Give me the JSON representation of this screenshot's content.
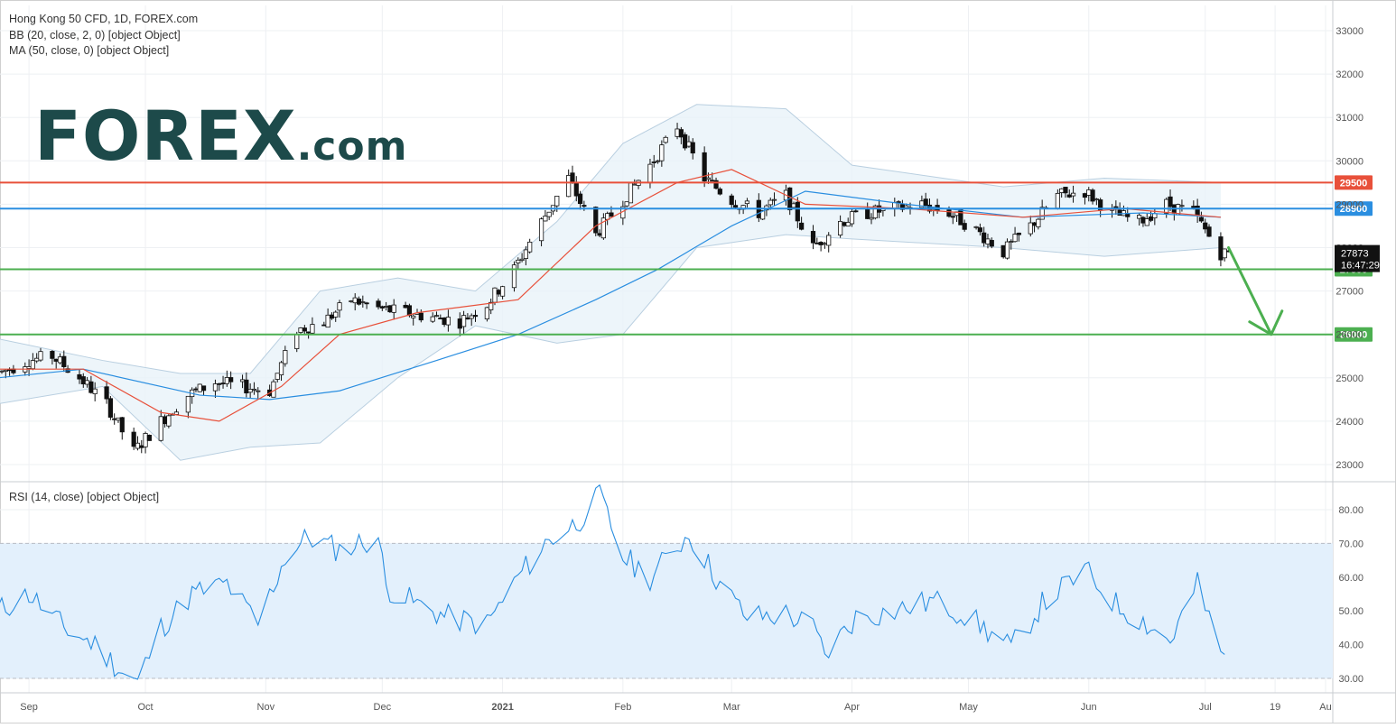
{
  "header": {
    "title": "Hong Kong 50 CFD, 1D, FOREX.com",
    "bb_label": "BB (20, close, 2, 0) [object Object]",
    "ma_label": "MA (50, close, 0) [object Object]",
    "rsi_label": "RSI (14, close) [object Object]"
  },
  "logo": {
    "main": "FOREX",
    "suffix": ".com"
  },
  "colors": {
    "resistance_red": "#e8503a",
    "level_blue": "#2a8ee0",
    "support_green": "#4caf50",
    "ma_blue": "#2a8ee0",
    "bb_mid_red": "#e8503a",
    "rsi_line": "#2a8ee0",
    "rsi_band": "#e3f0fc",
    "bb_fill": "#e9f2f9"
  },
  "price_tag": {
    "value": "27873",
    "countdown": "16:47:29"
  },
  "chart_data": [
    {
      "type": "candlestick",
      "title": "Hong Kong 50 CFD, 1D, FOREX.com",
      "ylim": [
        22700,
        33500
      ],
      "y_ticks": [
        23000,
        24000,
        25000,
        26000,
        27000,
        28000,
        29000,
        30000,
        31000,
        32000,
        33000
      ],
      "x_ticks": [
        "Sep",
        "Oct",
        "Nov",
        "Dec",
        "2021",
        "Feb",
        "Mar",
        "Apr",
        "May",
        "Jun",
        "Jul",
        "19",
        "Au"
      ],
      "x_tick_dates": [
        "2020-09-01",
        "2020-10-01",
        "2020-11-01",
        "2020-12-01",
        "2021-01-01",
        "2021-02-01",
        "2021-03-01",
        "2021-04-01",
        "2021-05-01",
        "2021-06-01",
        "2021-07-01",
        "2021-07-19",
        "2021-08-01"
      ],
      "horizontal_levels": [
        {
          "value": 29500,
          "label": "29500",
          "color": "#e8503a"
        },
        {
          "value": 28900,
          "label": "28900",
          "color": "#2a8ee0"
        },
        {
          "value": 27500,
          "label": "27500",
          "color": "#4caf50"
        },
        {
          "value": 26000,
          "label": "26000",
          "color": "#4caf50"
        }
      ],
      "series_close": [
        [
          "2020-08-24",
          25100
        ],
        [
          "2020-09-01",
          25400
        ],
        [
          "2020-09-07",
          25500
        ],
        [
          "2020-09-14",
          25000
        ],
        [
          "2020-09-21",
          24400
        ],
        [
          "2020-09-28",
          23300
        ],
        [
          "2020-10-05",
          24000
        ],
        [
          "2020-10-12",
          24600
        ],
        [
          "2020-10-19",
          24900
        ],
        [
          "2020-10-26",
          24800
        ],
        [
          "2020-11-02",
          24700
        ],
        [
          "2020-11-09",
          26100
        ],
        [
          "2020-11-16",
          26300
        ],
        [
          "2020-11-23",
          26800
        ],
        [
          "2020-11-30",
          26600
        ],
        [
          "2020-12-07",
          26500
        ],
        [
          "2020-12-14",
          26400
        ],
        [
          "2020-12-21",
          26300
        ],
        [
          "2020-12-28",
          26700
        ],
        [
          "2021-01-04",
          27500
        ],
        [
          "2021-01-11",
          28600
        ],
        [
          "2021-01-18",
          29600
        ],
        [
          "2021-01-25",
          28300
        ],
        [
          "2021-02-01",
          29100
        ],
        [
          "2021-02-08",
          29900
        ],
        [
          "2021-02-15",
          30800
        ],
        [
          "2021-02-22",
          29600
        ],
        [
          "2021-03-01",
          29100
        ],
        [
          "2021-03-08",
          28800
        ],
        [
          "2021-03-15",
          29200
        ],
        [
          "2021-03-22",
          28000
        ],
        [
          "2021-03-29",
          28600
        ],
        [
          "2021-04-05",
          28800
        ],
        [
          "2021-04-12",
          28900
        ],
        [
          "2021-04-19",
          29000
        ],
        [
          "2021-04-26",
          28800
        ],
        [
          "2021-05-03",
          28400
        ],
        [
          "2021-05-10",
          27900
        ],
        [
          "2021-05-17",
          28500
        ],
        [
          "2021-05-24",
          29200
        ],
        [
          "2021-05-31",
          29300
        ],
        [
          "2021-06-07",
          28800
        ],
        [
          "2021-06-14",
          28600
        ],
        [
          "2021-06-21",
          29000
        ],
        [
          "2021-06-28",
          28800
        ],
        [
          "2021-07-05",
          27873
        ]
      ],
      "ma50": [
        [
          "2020-08-24",
          25000
        ],
        [
          "2020-09-15",
          25200
        ],
        [
          "2020-10-15",
          24600
        ],
        [
          "2020-11-02",
          24500
        ],
        [
          "2020-11-20",
          24700
        ],
        [
          "2020-12-15",
          25400
        ],
        [
          "2021-01-05",
          26000
        ],
        [
          "2021-01-25",
          26800
        ],
        [
          "2021-02-10",
          27500
        ],
        [
          "2021-03-01",
          28500
        ],
        [
          "2021-03-20",
          29300
        ],
        [
          "2021-04-15",
          29000
        ],
        [
          "2021-05-15",
          28700
        ],
        [
          "2021-06-15",
          28800
        ],
        [
          "2021-07-05",
          28700
        ]
      ],
      "bb_basis": [
        [
          "2020-08-24",
          25200
        ],
        [
          "2020-09-15",
          25200
        ],
        [
          "2020-10-05",
          24200
        ],
        [
          "2020-10-20",
          24000
        ],
        [
          "2020-11-05",
          24800
        ],
        [
          "2020-11-20",
          26000
        ],
        [
          "2020-12-10",
          26500
        ],
        [
          "2021-01-05",
          26800
        ],
        [
          "2021-01-25",
          28500
        ],
        [
          "2021-02-15",
          29500
        ],
        [
          "2021-03-01",
          29800
        ],
        [
          "2021-03-20",
          29000
        ],
        [
          "2021-04-15",
          28900
        ],
        [
          "2021-05-15",
          28700
        ],
        [
          "2021-06-10",
          28900
        ],
        [
          "2021-07-05",
          28700
        ]
      ],
      "bb_upper": [
        [
          "2020-08-24",
          25900
        ],
        [
          "2020-09-20",
          25400
        ],
        [
          "2020-10-10",
          25100
        ],
        [
          "2020-10-28",
          25100
        ],
        [
          "2020-11-15",
          27000
        ],
        [
          "2020-12-05",
          27300
        ],
        [
          "2020-12-25",
          27000
        ],
        [
          "2021-01-15",
          28600
        ],
        [
          "2021-02-01",
          30400
        ],
        [
          "2021-02-20",
          31300
        ],
        [
          "2021-03-15",
          31200
        ],
        [
          "2021-04-01",
          29900
        ],
        [
          "2021-05-10",
          29400
        ],
        [
          "2021-06-05",
          29600
        ],
        [
          "2021-07-05",
          29500
        ]
      ],
      "bb_lower": [
        [
          "2020-08-24",
          24400
        ],
        [
          "2020-09-20",
          24800
        ],
        [
          "2020-10-10",
          23100
        ],
        [
          "2020-10-28",
          23400
        ],
        [
          "2020-11-15",
          23500
        ],
        [
          "2020-12-05",
          25000
        ],
        [
          "2020-12-25",
          26200
        ],
        [
          "2021-01-15",
          25800
        ],
        [
          "2021-02-01",
          26000
        ],
        [
          "2021-02-20",
          28000
        ],
        [
          "2021-03-15",
          28300
        ],
        [
          "2021-04-01",
          28200
        ],
        [
          "2021-05-10",
          28000
        ],
        [
          "2021-06-05",
          27800
        ],
        [
          "2021-07-05",
          28000
        ]
      ],
      "price_tag": {
        "value": 27873,
        "countdown": "16:47:29"
      },
      "annotation": {
        "type": "arrow",
        "direction": "down",
        "from": [
          "2021-07-07",
          28000
        ],
        "to": [
          "2021-07-18",
          26000
        ]
      }
    },
    {
      "type": "line",
      "title": "RSI (14, close) [object Object]",
      "ylim": [
        27,
        88
      ],
      "y_ticks": [
        30,
        40,
        50,
        60,
        70,
        80
      ],
      "band": [
        30,
        70
      ],
      "series": [
        {
          "name": "RSI",
          "values": [
            [
              "2020-08-24",
              50
            ],
            [
              "2020-09-01",
              55
            ],
            [
              "2020-09-10",
              45
            ],
            [
              "2020-09-18",
              40
            ],
            [
              "2020-09-25",
              32
            ],
            [
              "2020-09-29",
              29
            ],
            [
              "2020-10-05",
              45
            ],
            [
              "2020-10-13",
              55
            ],
            [
              "2020-10-22",
              58
            ],
            [
              "2020-10-30",
              46
            ],
            [
              "2020-11-06",
              66
            ],
            [
              "2020-11-12",
              72
            ],
            [
              "2020-11-20",
              68
            ],
            [
              "2020-11-30",
              72
            ],
            [
              "2020-12-02",
              57
            ],
            [
              "2020-12-10",
              52
            ],
            [
              "2020-12-18",
              48
            ],
            [
              "2020-12-28",
              46
            ],
            [
              "2021-01-05",
              60
            ],
            [
              "2021-01-12",
              70
            ],
            [
              "2021-01-20",
              76
            ],
            [
              "2021-01-26",
              84
            ],
            [
              "2021-02-01",
              66
            ],
            [
              "2021-02-08",
              60
            ],
            [
              "2021-02-18",
              73
            ],
            [
              "2021-02-26",
              58
            ],
            [
              "2021-03-05",
              48
            ],
            [
              "2021-03-15",
              49
            ],
            [
              "2021-03-22",
              45
            ],
            [
              "2021-03-25",
              37
            ],
            [
              "2021-04-02",
              48
            ],
            [
              "2021-04-12",
              50
            ],
            [
              "2021-04-22",
              53
            ],
            [
              "2021-04-30",
              49
            ],
            [
              "2021-05-06",
              44
            ],
            [
              "2021-05-12",
              39
            ],
            [
              "2021-05-20",
              52
            ],
            [
              "2021-05-31",
              62
            ],
            [
              "2021-06-08",
              52
            ],
            [
              "2021-06-15",
              47
            ],
            [
              "2021-06-22",
              41
            ],
            [
              "2021-06-29",
              58
            ],
            [
              "2021-07-05",
              37
            ]
          ]
        }
      ]
    }
  ]
}
